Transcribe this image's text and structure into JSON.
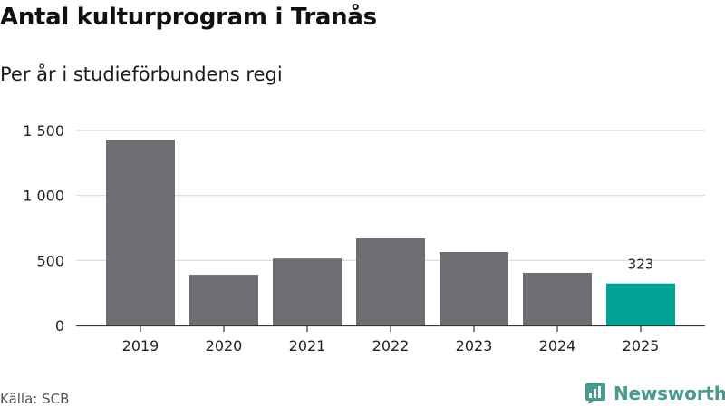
{
  "title": "Antal kulturprogram i Tranås",
  "subtitle": "Per år i studieförbundens regi",
  "source": "Källa: SCB",
  "brand": {
    "name": "Newsworthy",
    "icon": "newsworthy-logo-icon"
  },
  "colors": {
    "bar": "#6e6d73",
    "highlight": "#00a395",
    "grid": "#d8d8d8",
    "axis": "#333333",
    "brand": "#4a9a8e"
  },
  "chart_data": {
    "type": "bar",
    "title": "Antal kulturprogram i Tranås",
    "subtitle": "Per år i studieförbundens regi",
    "xlabel": "",
    "ylabel": "",
    "categories": [
      "2019",
      "2020",
      "2021",
      "2022",
      "2023",
      "2024",
      "2025"
    ],
    "values": [
      1430,
      390,
      515,
      670,
      565,
      405,
      323
    ],
    "highlight_index": 6,
    "data_labels": [
      {
        "index": 6,
        "text": "323"
      }
    ],
    "ylim": [
      0,
      1500
    ],
    "yticks": [
      0,
      500,
      1000,
      1500
    ],
    "ytick_labels": [
      "0",
      "500",
      "1 000",
      "1 500"
    ],
    "grid": true,
    "legend": "none"
  }
}
